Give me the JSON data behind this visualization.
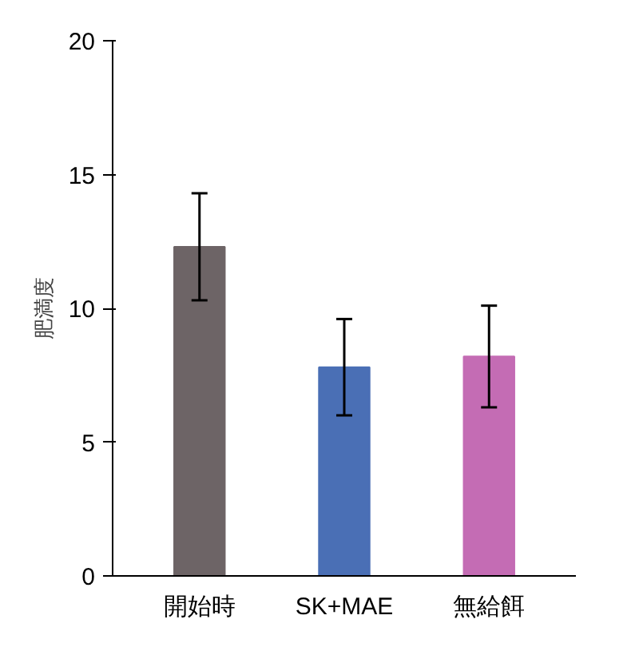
{
  "chart_data": {
    "type": "bar",
    "ylabel": "肥満度",
    "categories": [
      "開始時",
      "SK+MAE",
      "無給餌"
    ],
    "values": [
      12.3,
      7.8,
      8.2
    ],
    "errors": [
      2.0,
      1.8,
      1.9
    ],
    "colors": [
      "#6d6466",
      "#4a6fb5",
      "#c46cb4"
    ],
    "ylim": [
      0,
      20
    ],
    "yticks": [
      0,
      5,
      10,
      15,
      20
    ],
    "grid": false
  }
}
